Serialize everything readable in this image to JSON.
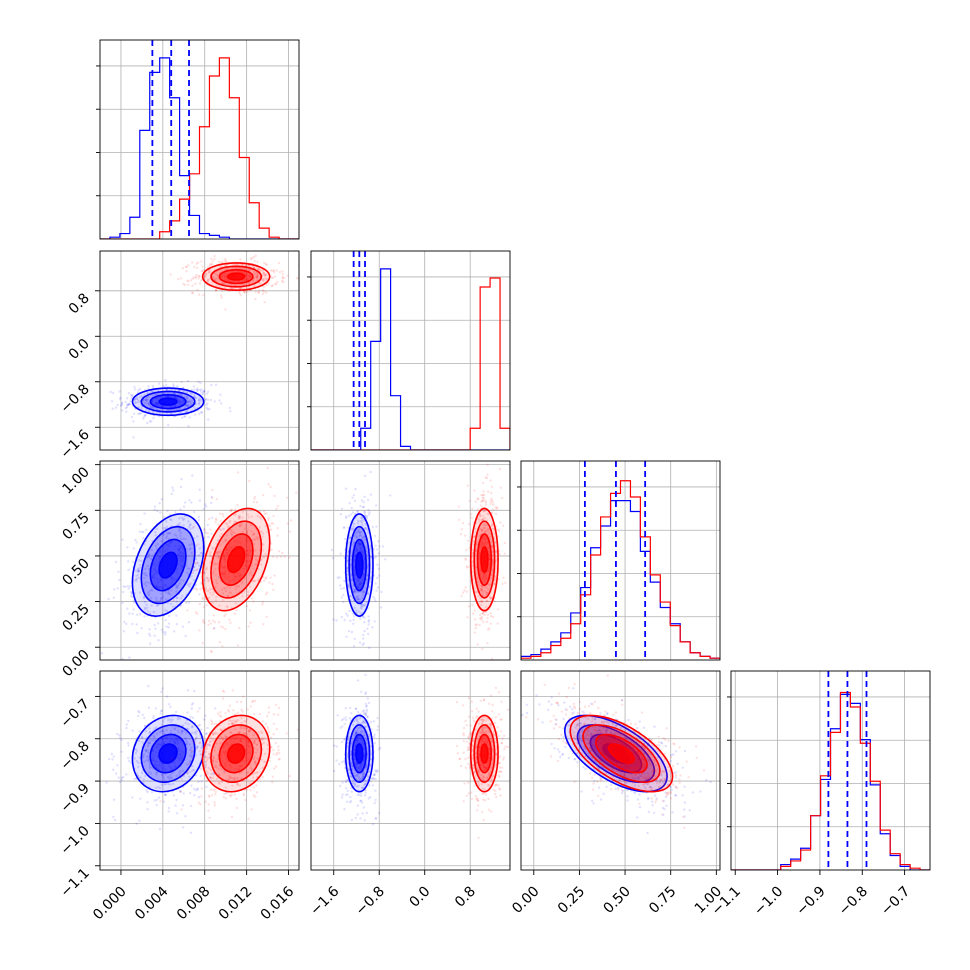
{
  "chart_data": {
    "type": "corner",
    "grid": true,
    "legend": "none",
    "parameters": [
      {
        "lim": [
          -0.002,
          0.017
        ],
        "ticks": [
          0.0,
          0.004,
          0.008,
          0.012,
          0.016
        ],
        "tick_labels": [
          "0.000",
          "0.004",
          "0.008",
          "0.012",
          "0.016"
        ]
      },
      {
        "lim": [
          -2.0,
          1.5
        ],
        "ticks": [
          -1.6,
          -0.8,
          0.0,
          0.8
        ],
        "tick_labels": [
          "−1.6",
          "−0.8",
          "0.0",
          "0.8"
        ]
      },
      {
        "lim": [
          -0.07,
          1.02
        ],
        "ticks": [
          0.0,
          0.25,
          0.5,
          0.75,
          1.0
        ],
        "tick_labels": [
          "0.00",
          "0.25",
          "0.50",
          "0.75",
          "1.00"
        ]
      },
      {
        "lim": [
          -1.11,
          -0.64
        ],
        "ticks": [
          -1.1,
          -1.0,
          -0.9,
          -0.8,
          -0.7
        ],
        "tick_labels": [
          "−1.1",
          "−1.0",
          "−0.9",
          "−0.8",
          "−0.7"
        ]
      }
    ],
    "series": [
      {
        "color": "#0000ff",
        "mean": [
          0.0045,
          -1.15,
          0.45,
          -0.835
        ],
        "sd": [
          0.0017,
          0.12,
          0.14,
          0.045
        ],
        "quantiles": [
          [
            0.003,
            0.0048,
            0.0065
          ],
          [
            -1.25,
            -1.15,
            -1.05
          ],
          [
            0.28,
            0.45,
            0.61
          ],
          [
            -0.88,
            -0.835,
            -0.79
          ]
        ],
        "hist": [
          [
            0,
            0.01,
            0.03,
            0.12,
            0.6,
            0.92,
            1.0,
            0.78,
            0.35,
            0.13,
            0.03,
            0.02,
            0.01,
            0,
            0,
            0,
            0,
            0,
            0,
            0
          ],
          [
            0,
            0,
            0,
            0,
            0,
            0.12,
            0.6,
            1.0,
            0.3,
            0.02,
            0,
            0,
            0,
            0,
            0,
            0,
            0,
            0,
            0,
            0
          ],
          [
            0.02,
            0.03,
            0.06,
            0.1,
            0.15,
            0.26,
            0.4,
            0.62,
            0.74,
            0.88,
            0.88,
            0.82,
            0.6,
            0.43,
            0.29,
            0.2,
            0.1,
            0.04,
            0.02,
            0.01
          ],
          [
            0,
            0,
            0,
            0,
            0,
            0.03,
            0.06,
            0.12,
            0.3,
            0.5,
            0.78,
            0.97,
            0.92,
            0.72,
            0.47,
            0.2,
            0.08,
            0.02,
            0,
            0
          ]
        ]
      },
      {
        "color": "#ff0000",
        "mean": [
          0.011,
          1.05,
          0.48,
          -0.835
        ],
        "sd": [
          0.0016,
          0.12,
          0.14,
          0.045
        ],
        "quantiles": [],
        "hist": [
          [
            0,
            0,
            0,
            0,
            0,
            0,
            0.04,
            0.1,
            0.22,
            0.36,
            0.62,
            0.9,
            1.0,
            0.78,
            0.45,
            0.2,
            0.06,
            0.01,
            0,
            0
          ],
          [
            0,
            0,
            0,
            0,
            0,
            0,
            0,
            0,
            0,
            0,
            0,
            0,
            0,
            0,
            0,
            0,
            0.12,
            0.9,
            0.95,
            0.12
          ],
          [
            0.01,
            0.02,
            0.04,
            0.08,
            0.12,
            0.2,
            0.36,
            0.58,
            0.79,
            0.92,
            0.99,
            0.9,
            0.68,
            0.47,
            0.32,
            0.19,
            0.1,
            0.04,
            0.02,
            0.01
          ],
          [
            0,
            0,
            0,
            0,
            0,
            0.02,
            0.05,
            0.11,
            0.3,
            0.52,
            0.76,
            0.98,
            0.9,
            0.7,
            0.49,
            0.22,
            0.09,
            0.03,
            0.01,
            0
          ]
        ]
      }
    ],
    "correlations": {
      "1-0": 0.0,
      "2-0": 0.35,
      "2-1": 0.0,
      "3-0": 0.15,
      "3-1": 0.0,
      "3-2": -0.6
    }
  }
}
